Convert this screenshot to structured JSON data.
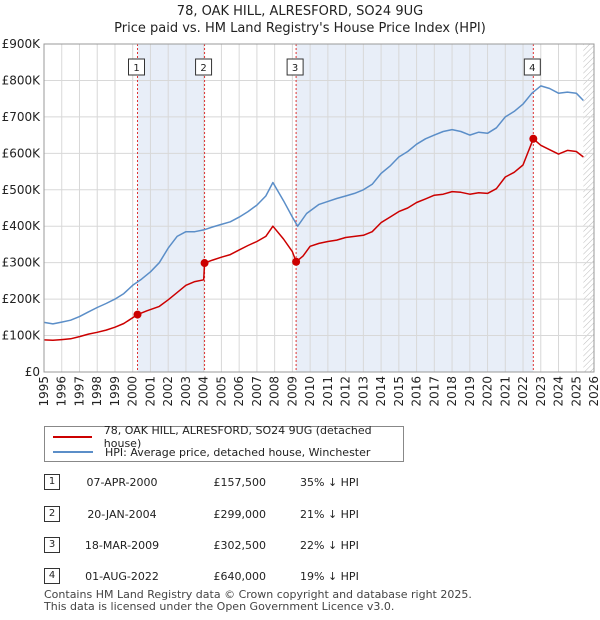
{
  "title_line1": "78, OAK HILL, ALRESFORD, SO24 9UG",
  "title_line2": "Price paid vs. HM Land Registry's House Price Index (HPI)",
  "colors": {
    "red": "#cc0000",
    "blue": "#5b8ec8",
    "shade": "#e8eef8",
    "grid": "#d8d8d8"
  },
  "chart_data": {
    "type": "line",
    "ylim": [
      0,
      900000
    ],
    "xlim": [
      1995.0,
      2026.0
    ],
    "y_ticks": [
      {
        "value": 0,
        "label": "£0"
      },
      {
        "value": 100000,
        "label": "£100K"
      },
      {
        "value": 200000,
        "label": "£200K"
      },
      {
        "value": 300000,
        "label": "£300K"
      },
      {
        "value": 400000,
        "label": "£400K"
      },
      {
        "value": 500000,
        "label": "£500K"
      },
      {
        "value": 600000,
        "label": "£600K"
      },
      {
        "value": 700000,
        "label": "£700K"
      },
      {
        "value": 800000,
        "label": "£800K"
      },
      {
        "value": 900000,
        "label": "£900K"
      }
    ],
    "x_ticks": [
      "1995",
      "1996",
      "1997",
      "1998",
      "1999",
      "2000",
      "2001",
      "2002",
      "2003",
      "2004",
      "2005",
      "2006",
      "2007",
      "2008",
      "2009",
      "2010",
      "2011",
      "2012",
      "2013",
      "2014",
      "2015",
      "2016",
      "2017",
      "2018",
      "2019",
      "2020",
      "2021",
      "2022",
      "2023",
      "2024",
      "2025",
      "2026"
    ],
    "series": [
      {
        "name": "78, OAK HILL, ALRESFORD, SO24 9UG (detached house)",
        "color": "#cc0000",
        "x": [
          1995.0,
          1995.5,
          1996.0,
          1996.5,
          1997.0,
          1997.5,
          1998.0,
          1998.5,
          1999.0,
          1999.5,
          2000.27,
          2000.8,
          2001.5,
          2002.0,
          2002.5,
          2003.0,
          2003.5,
          2004.0,
          2004.05,
          2004.5,
          2005.0,
          2005.5,
          2006.0,
          2006.5,
          2007.0,
          2007.5,
          2007.9,
          2008.5,
          2009.0,
          2009.21,
          2009.6,
          2010.0,
          2010.5,
          2011.0,
          2011.5,
          2012.0,
          2012.5,
          2013.0,
          2013.5,
          2014.0,
          2014.5,
          2015.0,
          2015.5,
          2016.0,
          2016.5,
          2017.0,
          2017.5,
          2018.0,
          2018.5,
          2019.0,
          2019.5,
          2020.0,
          2020.5,
          2021.0,
          2021.5,
          2022.0,
          2022.58,
          2023.0,
          2023.5,
          2024.0,
          2024.5,
          2025.0,
          2025.4
        ],
        "y": [
          88000,
          87000,
          89000,
          91000,
          97000,
          104000,
          109000,
          115000,
          123000,
          133000,
          157500,
          168000,
          180000,
          198000,
          218000,
          238000,
          248000,
          253000,
          299000,
          307000,
          315000,
          322000,
          335000,
          347000,
          358000,
          372000,
          400000,
          365000,
          330000,
          302500,
          318000,
          345000,
          353000,
          358000,
          362000,
          369000,
          372000,
          375000,
          385000,
          410000,
          425000,
          440000,
          450000,
          465000,
          475000,
          485000,
          488000,
          495000,
          493000,
          488000,
          492000,
          490000,
          503000,
          535000,
          548000,
          568000,
          640000,
          622000,
          610000,
          598000,
          608000,
          605000,
          590000
        ]
      },
      {
        "name": "HPI: Average price, detached house, Winchester",
        "color": "#5b8ec8",
        "x": [
          1995.0,
          1995.5,
          1996.0,
          1996.5,
          1997.0,
          1997.5,
          1998.0,
          1998.5,
          1999.0,
          1999.5,
          2000.0,
          2000.5,
          2001.0,
          2001.5,
          2002.0,
          2002.5,
          2003.0,
          2003.5,
          2004.0,
          2004.5,
          2005.0,
          2005.5,
          2006.0,
          2006.5,
          2007.0,
          2007.5,
          2007.9,
          2008.5,
          2009.0,
          2009.3,
          2009.8,
          2010.5,
          2011.0,
          2011.5,
          2012.0,
          2012.5,
          2013.0,
          2013.5,
          2014.0,
          2014.5,
          2015.0,
          2015.5,
          2016.0,
          2016.5,
          2017.0,
          2017.5,
          2018.0,
          2018.5,
          2019.0,
          2019.5,
          2020.0,
          2020.5,
          2021.0,
          2021.5,
          2022.0,
          2022.5,
          2023.0,
          2023.5,
          2024.0,
          2024.5,
          2025.0,
          2025.4
        ],
        "y": [
          136000,
          132000,
          137000,
          142000,
          152000,
          165000,
          177000,
          188000,
          200000,
          215000,
          238000,
          255000,
          275000,
          300000,
          340000,
          372000,
          385000,
          385000,
          390000,
          398000,
          405000,
          412000,
          425000,
          440000,
          458000,
          483000,
          520000,
          470000,
          425000,
          400000,
          435000,
          460000,
          468000,
          476000,
          483000,
          490000,
          500000,
          515000,
          545000,
          565000,
          590000,
          605000,
          625000,
          640000,
          650000,
          660000,
          665000,
          660000,
          650000,
          658000,
          655000,
          670000,
          700000,
          715000,
          735000,
          765000,
          785000,
          778000,
          765000,
          768000,
          765000,
          745000
        ]
      }
    ],
    "transactions": [
      {
        "num": "1",
        "x": 2000.27,
        "y": 157500,
        "date": "07-APR-2000",
        "price": "£157,500",
        "hpi": "35% ↓ HPI"
      },
      {
        "num": "2",
        "x": 2004.05,
        "y": 299000,
        "date": "20-JAN-2004",
        "price": "£299,000",
        "hpi": "21% ↓ HPI"
      },
      {
        "num": "3",
        "x": 2009.21,
        "y": 302500,
        "date": "18-MAR-2009",
        "price": "£302,500",
        "hpi": "22% ↓ HPI"
      },
      {
        "num": "4",
        "x": 2022.58,
        "y": 640000,
        "date": "01-AUG-2022",
        "price": "£640,000",
        "hpi": "19% ↓ HPI"
      }
    ]
  },
  "legend": {
    "red_label": "78, OAK HILL, ALRESFORD, SO24 9UG (detached house)",
    "blue_label": "HPI: Average price, detached house, Winchester"
  },
  "footer": {
    "line1": "Contains HM Land Registry data © Crown copyright and database right 2025.",
    "line2": "This data is licensed under the Open Government Licence v3.0."
  }
}
